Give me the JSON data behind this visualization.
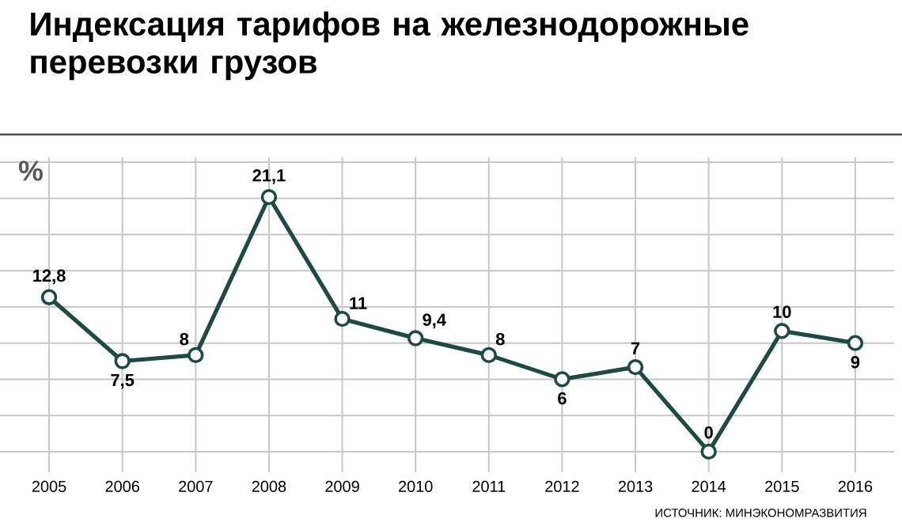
{
  "chart_data": {
    "type": "line",
    "title": "Индексация тарифов на железнодорожные перевозки грузов",
    "ylabel": "%",
    "categories": [
      "2005",
      "2006",
      "2007",
      "2008",
      "2009",
      "2010",
      "2011",
      "2012",
      "2013",
      "2014",
      "2015",
      "2016"
    ],
    "series": [
      {
        "color": "#1f4a44",
        "values": [
          12.8,
          7.5,
          8,
          21.1,
          11,
          9.4,
          8,
          6,
          7,
          0,
          10,
          9
        ],
        "value_labels": [
          "12,8",
          "7,5",
          "8",
          "21,1",
          "11",
          "9,4",
          "8",
          "6",
          "7",
          "0",
          "10",
          "9"
        ]
      }
    ],
    "ylim": [
      -1.7,
      24.4
    ],
    "yticks": [
      {
        "value": 0,
        "label": null
      },
      {
        "value": 3,
        "label": null
      },
      {
        "value": 6,
        "label": null
      },
      {
        "value": 9,
        "label": null
      },
      {
        "value": 12,
        "label": null
      },
      {
        "value": 15,
        "label": null
      },
      {
        "value": 18,
        "label": null
      },
      {
        "value": 21,
        "label": null
      },
      {
        "value": 24,
        "label": null
      }
    ],
    "tick_labels": "x",
    "grid": true,
    "marker": "circle",
    "line_style": "solid",
    "annotations": [
      "ИСТОЧНИК: МИНЭКОНОМРАЗВИТИЯ"
    ]
  }
}
